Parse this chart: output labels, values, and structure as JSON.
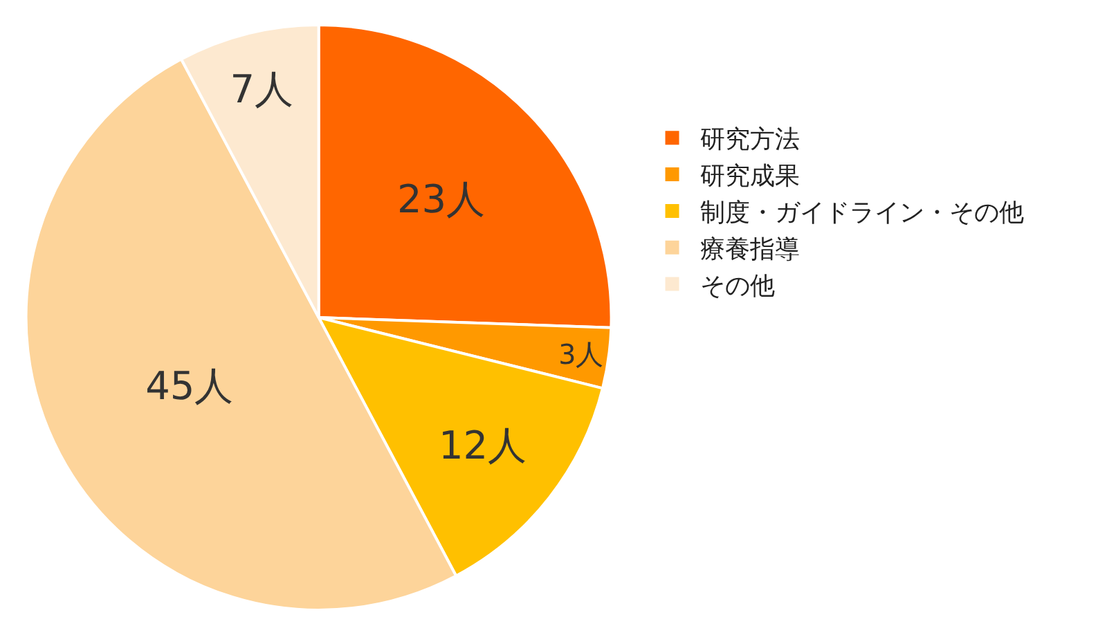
{
  "chart_data": {
    "type": "pie",
    "categories": [
      "研究方法",
      "研究成果",
      "制度・ガイドライン・その他",
      "療養指導",
      "その他"
    ],
    "values": [
      23,
      3,
      12,
      45,
      7
    ],
    "colors": [
      "#ff6600",
      "#ff9900",
      "#ffc000",
      "#fdd49a",
      "#fde9d0"
    ],
    "value_labels": [
      "23人",
      "3人",
      "12人",
      "45人",
      "7人"
    ],
    "legend": "right"
  }
}
